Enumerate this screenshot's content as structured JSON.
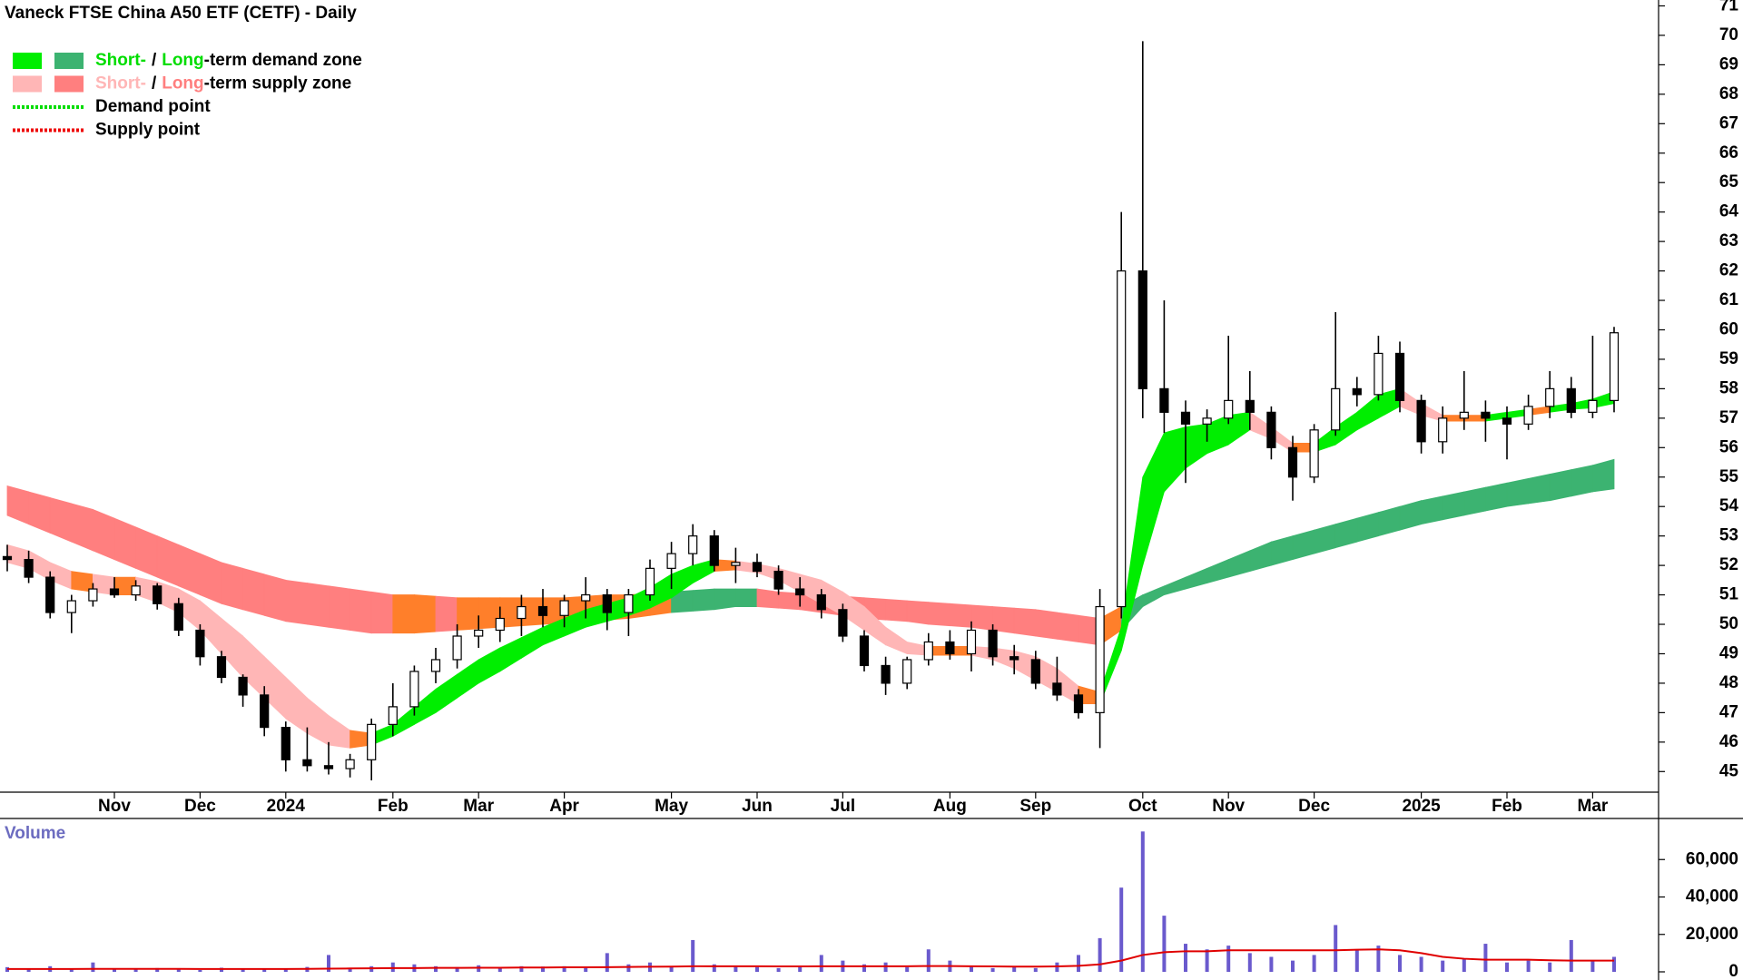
{
  "chart_data": [
    {
      "type": "candlestick",
      "title": "Vaneck FTSE China A50 ETF (CETF) - Daily",
      "categories": [
        null,
        null,
        null,
        null,
        null,
        "Nov",
        null,
        null,
        null,
        "Dec",
        null,
        null,
        null,
        "2024",
        null,
        null,
        null,
        null,
        "Feb",
        null,
        null,
        null,
        "Mar",
        null,
        null,
        null,
        "Apr",
        null,
        null,
        null,
        null,
        "May",
        null,
        null,
        null,
        "Jun",
        null,
        null,
        null,
        "Jul",
        null,
        null,
        null,
        null,
        "Aug",
        null,
        null,
        null,
        "Sep",
        null,
        null,
        null,
        null,
        "Oct",
        null,
        null,
        null,
        "Nov",
        null,
        null,
        null,
        "Dec",
        null,
        null,
        null,
        null,
        "2025",
        null,
        null,
        null,
        "Feb",
        null,
        null,
        null,
        "Mar",
        null
      ],
      "open": [
        52.3,
        52.2,
        51.6,
        50.4,
        50.8,
        51.2,
        51.0,
        51.3,
        50.7,
        49.8,
        48.9,
        48.2,
        47.6,
        46.5,
        45.4,
        45.2,
        45.1,
        45.4,
        46.6,
        47.2,
        48.4,
        48.8,
        49.6,
        49.8,
        50.2,
        50.6,
        50.3,
        50.8,
        51.0,
        50.4,
        51.0,
        51.9,
        52.4,
        53.0,
        52.0,
        52.1,
        51.8,
        51.2,
        51.0,
        50.5,
        49.6,
        48.6,
        48.0,
        48.8,
        49.4,
        49.0,
        49.8,
        48.9,
        48.8,
        48.0,
        47.6,
        47.0,
        50.6,
        62.0,
        58.0,
        57.2,
        56.8,
        57.0,
        57.6,
        57.2,
        56.0,
        55.0,
        56.6,
        58.0,
        57.8,
        59.2,
        57.6,
        56.2,
        57.0,
        57.2,
        57.0,
        56.8,
        57.4,
        58.0,
        57.2,
        57.6
      ],
      "high": [
        52.7,
        52.5,
        51.8,
        51.0,
        51.4,
        51.6,
        51.5,
        51.4,
        50.9,
        50.0,
        49.1,
        48.3,
        47.9,
        46.7,
        46.5,
        46.0,
        45.6,
        46.8,
        48.0,
        48.6,
        49.2,
        50.0,
        50.3,
        50.6,
        51.0,
        51.2,
        51.0,
        51.6,
        51.2,
        51.2,
        52.2,
        52.8,
        53.4,
        53.2,
        52.6,
        52.4,
        52.0,
        51.6,
        51.2,
        50.7,
        49.8,
        48.9,
        48.9,
        49.7,
        49.8,
        50.1,
        50.0,
        49.3,
        49.1,
        48.9,
        47.8,
        51.2,
        64.0,
        69.8,
        61.0,
        57.6,
        57.3,
        59.8,
        58.6,
        57.4,
        56.4,
        56.8,
        60.6,
        58.4,
        59.8,
        59.6,
        57.8,
        57.4,
        58.6,
        57.6,
        57.4,
        57.8,
        58.6,
        58.4,
        59.8,
        60.1
      ],
      "low": [
        51.8,
        51.4,
        50.2,
        49.7,
        50.6,
        50.9,
        50.8,
        50.5,
        49.6,
        48.6,
        48.0,
        47.2,
        46.2,
        45.0,
        45.0,
        44.9,
        44.8,
        44.7,
        46.2,
        46.9,
        48.0,
        48.5,
        49.2,
        49.4,
        49.6,
        49.9,
        49.9,
        50.2,
        49.8,
        49.6,
        50.8,
        51.2,
        52.0,
        51.8,
        51.4,
        51.6,
        51.0,
        50.6,
        50.2,
        49.4,
        48.4,
        47.6,
        47.8,
        48.6,
        48.8,
        48.4,
        48.6,
        48.3,
        47.8,
        47.4,
        46.8,
        45.8,
        50.2,
        57.0,
        56.5,
        54.8,
        56.2,
        56.8,
        56.6,
        55.6,
        54.2,
        54.8,
        56.4,
        57.4,
        57.6,
        57.2,
        55.8,
        55.8,
        56.6,
        56.2,
        55.6,
        56.6,
        57.0,
        57.0,
        57.0,
        57.2
      ],
      "close": [
        52.2,
        51.6,
        50.4,
        50.8,
        51.2,
        51.0,
        51.3,
        50.7,
        49.8,
        48.9,
        48.2,
        47.6,
        46.5,
        45.4,
        45.2,
        45.1,
        45.4,
        46.6,
        47.2,
        48.4,
        48.8,
        49.6,
        49.8,
        50.2,
        50.6,
        50.3,
        50.8,
        51.0,
        50.4,
        51.0,
        51.9,
        52.4,
        53.0,
        52.0,
        52.1,
        51.8,
        51.2,
        51.0,
        50.5,
        49.6,
        48.6,
        48.0,
        48.8,
        49.4,
        49.0,
        49.8,
        48.9,
        48.8,
        48.0,
        47.6,
        47.0,
        50.6,
        62.0,
        58.0,
        57.2,
        56.8,
        57.0,
        57.6,
        57.2,
        56.0,
        55.0,
        56.6,
        58.0,
        57.8,
        59.2,
        57.6,
        56.2,
        57.0,
        57.2,
        57.0,
        56.8,
        57.4,
        58.0,
        57.2,
        57.6,
        59.9
      ],
      "short_zone": {
        "upper": [
          52.7,
          52.5,
          52.1,
          51.8,
          51.7,
          51.6,
          51.6,
          51.45,
          51.2,
          50.8,
          50.2,
          49.6,
          48.9,
          48.2,
          47.5,
          46.9,
          46.4,
          46.3,
          46.6,
          47.2,
          47.8,
          48.3,
          48.8,
          49.2,
          49.55,
          49.9,
          50.2,
          50.5,
          50.7,
          50.9,
          51.25,
          51.7,
          52.0,
          52.2,
          52.15,
          52.05,
          51.9,
          51.7,
          51.5,
          51.1,
          50.6,
          49.9,
          49.4,
          49.25,
          49.25,
          49.25,
          49.2,
          49.1,
          48.9,
          48.5,
          47.9,
          47.7,
          49.9,
          55.0,
          56.5,
          56.7,
          56.8,
          57.1,
          57.2,
          56.7,
          56.15,
          56.15,
          56.7,
          57.2,
          57.8,
          58.0,
          57.5,
          57.1,
          57.1,
          57.1,
          57.2,
          57.3,
          57.4,
          57.5,
          57.65,
          57.9
        ],
        "lower": [
          52.1,
          51.9,
          51.5,
          51.2,
          51.1,
          51.0,
          51.0,
          50.75,
          50.4,
          49.8,
          49.0,
          48.2,
          47.5,
          46.8,
          46.3,
          45.9,
          45.8,
          45.9,
          46.2,
          46.6,
          47.0,
          47.5,
          48.0,
          48.4,
          48.85,
          49.3,
          49.6,
          49.9,
          50.1,
          50.3,
          50.55,
          50.9,
          51.4,
          51.8,
          51.85,
          51.75,
          51.5,
          51.1,
          50.7,
          50.3,
          49.8,
          49.3,
          49.0,
          48.95,
          48.95,
          48.95,
          48.8,
          48.5,
          48.1,
          47.7,
          47.3,
          47.3,
          49.1,
          52.0,
          54.5,
          55.3,
          55.8,
          56.1,
          56.6,
          56.3,
          55.85,
          55.85,
          56.1,
          56.6,
          57.0,
          57.4,
          57.1,
          56.9,
          56.9,
          56.9,
          57.0,
          57.1,
          57.2,
          57.3,
          57.35,
          57.5
        ]
      },
      "long_zone": {
        "upper": [
          54.7,
          54.5,
          54.3,
          54.1,
          53.9,
          53.6,
          53.3,
          53.0,
          52.7,
          52.4,
          52.1,
          51.9,
          51.7,
          51.5,
          51.4,
          51.3,
          51.2,
          51.1,
          51.0,
          51.0,
          50.95,
          50.9,
          50.9,
          50.9,
          50.9,
          50.9,
          50.9,
          50.95,
          51.0,
          51.0,
          51.05,
          51.1,
          51.15,
          51.2,
          51.2,
          51.2,
          51.1,
          51.05,
          51.0,
          50.95,
          50.9,
          50.85,
          50.8,
          50.75,
          50.7,
          50.65,
          50.6,
          50.55,
          50.5,
          50.4,
          50.3,
          50.2,
          50.6,
          51.0,
          51.3,
          51.6,
          51.9,
          52.2,
          52.5,
          52.8,
          53.0,
          53.2,
          53.4,
          53.6,
          53.8,
          54.0,
          54.2,
          54.35,
          54.5,
          54.65,
          54.8,
          54.95,
          55.1,
          55.25,
          55.4,
          55.6
        ],
        "lower": [
          53.7,
          53.4,
          53.1,
          52.8,
          52.5,
          52.2,
          51.9,
          51.6,
          51.3,
          51.0,
          50.7,
          50.5,
          50.3,
          50.1,
          50.0,
          49.9,
          49.8,
          49.7,
          49.7,
          49.7,
          49.75,
          49.8,
          49.85,
          49.9,
          49.95,
          50.0,
          50.05,
          50.1,
          50.15,
          50.2,
          50.3,
          50.4,
          50.45,
          50.5,
          50.6,
          50.6,
          50.55,
          50.5,
          50.4,
          50.3,
          50.2,
          50.15,
          50.1,
          50.0,
          49.95,
          49.9,
          49.8,
          49.7,
          49.6,
          49.5,
          49.4,
          49.3,
          49.8,
          50.6,
          51.0,
          51.2,
          51.4,
          51.6,
          51.8,
          52.0,
          52.2,
          52.4,
          52.6,
          52.8,
          53.0,
          53.2,
          53.4,
          53.55,
          53.7,
          53.85,
          54.0,
          54.1,
          54.2,
          54.35,
          54.5,
          54.6
        ]
      },
      "zone_colors": {
        "short_demand": "#00ee00",
        "long_demand": "#3cb371",
        "short_supply": "#ffb6b6",
        "long_supply": "#ff7f7f",
        "overlap": "#ff7f2a"
      },
      "candle_color": "#000000",
      "ylim": [
        44.3,
        71.2
      ],
      "yticks": [
        45,
        46,
        47,
        48,
        49,
        50,
        51,
        52,
        53,
        54,
        55,
        56,
        57,
        58,
        59,
        60,
        61,
        62,
        63,
        64,
        65,
        66,
        67,
        68,
        69,
        70,
        71
      ],
      "legend": [
        {
          "swatches": [
            "short_demand",
            "long_demand"
          ],
          "parts": [
            "Short-",
            "/",
            "Long",
            "-term demand zone"
          ],
          "part_colors": [
            "#00dd00",
            "#000000",
            "#00dd00",
            "#000000"
          ]
        },
        {
          "swatches": [
            "short_supply",
            "long_supply"
          ],
          "parts": [
            "Short-",
            "/",
            "Long",
            "-term supply zone"
          ],
          "part_colors": [
            "#ffb6b6",
            "#000000",
            "#ff7f7f",
            "#000000"
          ]
        },
        {
          "line": "#00dd00",
          "parts": [
            "Demand point"
          ],
          "part_colors": [
            "#000000"
          ]
        },
        {
          "line": "#ee0000",
          "parts": [
            "Supply point"
          ],
          "part_colors": [
            "#000000"
          ]
        }
      ]
    },
    {
      "type": "bar",
      "title": "Volume",
      "values": [
        2500,
        1500,
        3000,
        1200,
        5000,
        1800,
        1200,
        2000,
        1500,
        1000,
        2200,
        1800,
        1500,
        1400,
        2600,
        9000,
        2000,
        3000,
        5000,
        4000,
        3000,
        2500,
        3500,
        2200,
        3000,
        2800,
        3000,
        2500,
        10000,
        4000,
        5000,
        3000,
        17000,
        4000,
        3000,
        2500,
        2000,
        3200,
        9000,
        6000,
        4000,
        5000,
        2500,
        12000,
        6000,
        3000,
        2000,
        2500,
        2000,
        5000,
        9000,
        18000,
        45000,
        75000,
        30000,
        15000,
        12000,
        14000,
        10000,
        8000,
        6000,
        9000,
        25000,
        12000,
        14000,
        9000,
        8000,
        6000,
        7000,
        15000,
        5000,
        6000,
        5000,
        17000,
        6000,
        8000
      ],
      "color": "#6a5acd",
      "average": {
        "values": [
          1500,
          1500,
          1500,
          1500,
          1600,
          1600,
          1600,
          1600,
          1600,
          1500,
          1500,
          1500,
          1500,
          1500,
          1600,
          1700,
          1800,
          1900,
          2000,
          2000,
          2100,
          2100,
          2200,
          2200,
          2300,
          2300,
          2400,
          2400,
          2500,
          2600,
          2700,
          2800,
          3000,
          3000,
          3000,
          3000,
          2900,
          2900,
          3000,
          3000,
          3000,
          3000,
          3000,
          3100,
          3100,
          3000,
          2900,
          2800,
          2800,
          2900,
          3200,
          4000,
          6000,
          9000,
          10500,
          11000,
          11000,
          11500,
          11500,
          11500,
          11500,
          11500,
          11500,
          11800,
          12000,
          11500,
          10000,
          8000,
          7000,
          6500,
          6500,
          6500,
          6200,
          6000,
          6000,
          6000
        ],
        "color": "#e00000"
      },
      "ylim": [
        0,
        80000
      ],
      "yticks": [
        0,
        {
          "value": 20000,
          "label": "20,000"
        },
        {
          "value": 40000,
          "label": "40,000"
        },
        {
          "value": 60000,
          "label": "60,000"
        }
      ]
    }
  ]
}
